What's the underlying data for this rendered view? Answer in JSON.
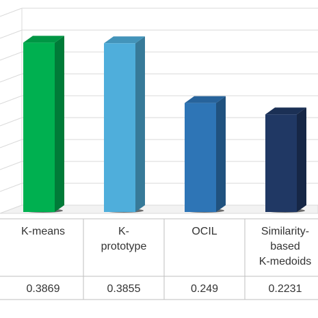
{
  "chart_data": {
    "type": "bar",
    "style": "3d-column",
    "categories": [
      "K-means",
      "K-prototype",
      "OCIL",
      "Similarity-based K-medoids"
    ],
    "category_label_lines": [
      [
        "K-means"
      ],
      [
        "K-",
        "prototype"
      ],
      [
        "OCIL"
      ],
      [
        "Similarity-",
        "based",
        "K-medoids"
      ]
    ],
    "values": [
      0.3869,
      0.3855,
      0.249,
      0.2231
    ],
    "value_labels": [
      "0.3869",
      "0.3855",
      "0.249",
      "0.2231"
    ],
    "bar_colors": [
      "#00b050",
      "#4faedb",
      "#2e75b6",
      "#203864"
    ],
    "ylim": [
      0,
      0.45
    ],
    "grid": true,
    "data_table": true,
    "title": "",
    "xlabel": "",
    "ylabel": ""
  }
}
